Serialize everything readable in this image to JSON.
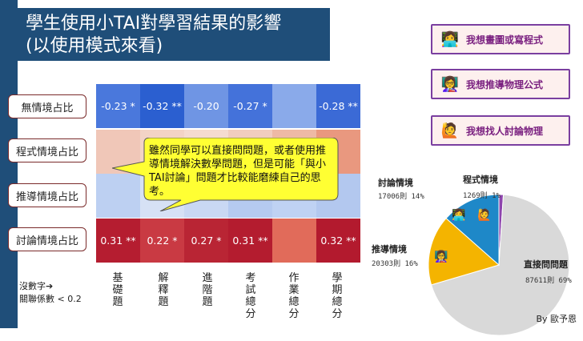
{
  "title": {
    "line1": "學生使用小TAI對學習結果的影響",
    "line2": "(以使用模式來看)"
  },
  "rows": [
    "無情境占比",
    "程式情境占比",
    "推導情境占比",
    "討論情境占比"
  ],
  "columns": [
    "基礎題",
    "解釋題",
    "進階題",
    "考試總分",
    "作業總分",
    "學期總分"
  ],
  "cells": [
    [
      "-0.23 *",
      "-0.32 **",
      "-0.20",
      "-0.27 *",
      "",
      "-0.28 **"
    ],
    [
      "",
      "",
      "",
      "",
      "",
      ""
    ],
    [
      "",
      "",
      "",
      "",
      "",
      ""
    ],
    [
      "0.31 **",
      "0.22 *",
      "0.27 *",
      "0.31 **",
      "",
      "0.32 **"
    ]
  ],
  "cell_colors": [
    [
      "#4a78dc",
      "#2b5fd0",
      "#6f95e4",
      "#4472da",
      "#8aaaea",
      "#3b6ad6"
    ],
    [
      "#f0c7b8",
      "#f3d3c6",
      "#f5dbd0",
      "#f1cdbf",
      "#eeb9a5",
      "#e9987f"
    ],
    [
      "#bdd0f2",
      "#d6e1f5",
      "#c9d8f3",
      "#b5caf0",
      "#bfd2f3",
      "#b3c8ef"
    ],
    [
      "#b51d30",
      "#c93a43",
      "#b92534",
      "#b41c2f",
      "#e16b5a",
      "#b31a2e"
    ]
  ],
  "bubble_text": "雖然同學可以直接問問題，或者使用推導情境解決數學問題，但是可能「與小TAI討論」問題才比較能磨練自己的思考。",
  "note": {
    "line1": "沒數字➔",
    "line2": "關聯係數 < 0.2"
  },
  "buttons": [
    {
      "label": "我想畫圖或寫程式",
      "icon": "👩‍💻"
    },
    {
      "label": "我想推導物理公式",
      "icon": "👩‍🏫"
    },
    {
      "label": "我想找人討論物理",
      "icon": "🙋"
    }
  ],
  "chart_data": {
    "type": "pie",
    "slices": [
      {
        "name": "直接問問題",
        "value": 87611,
        "percent": "69%",
        "color": "#d9d9d9"
      },
      {
        "name": "推導情境",
        "value": 20303,
        "percent": "16%",
        "color": "#f4b400"
      },
      {
        "name": "討論情境",
        "value": 17006,
        "percent": "14%",
        "color": "#1e88c8"
      },
      {
        "name": "程式情境",
        "value": 1269,
        "percent": "1%",
        "color": "#8e44ad"
      }
    ],
    "labels": {
      "direct": {
        "name": "直接問問題",
        "value": "87611則 69%"
      },
      "derive": {
        "name": "推導情境",
        "value": "20303則 16%"
      },
      "discuss": {
        "name": "討論情境",
        "value": "17006則 14%"
      },
      "code": {
        "name": "程式情境",
        "value": "1269則 1%"
      }
    }
  },
  "author": "By 歐予恩"
}
